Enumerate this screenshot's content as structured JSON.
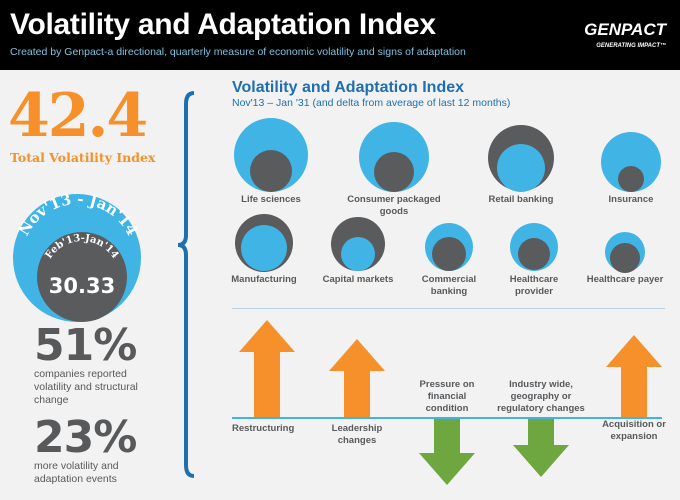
{
  "header": {
    "title": "Volatility and Adaptation Index",
    "subtitle": "Created by Genpact-a directional, quarterly measure of economic volatility and signs of adaptation",
    "logo": "GENPACT",
    "logo_tagline": "GENERATING IMPACT™"
  },
  "left": {
    "total_index": "42.4",
    "total_label": "Total Volatility Index",
    "outer_circle_period": "Nov'13 - Jan'14",
    "inner_circle_period": "Feb'13-Jan'14",
    "inner_circle_value": "30.33",
    "stat1": {
      "value": "51%",
      "text": "companies reported volatility and structural change"
    },
    "stat2": {
      "value": "23%",
      "text": "more volatility and adaptation events"
    }
  },
  "right": {
    "title": "Volatility and Adaptation Index",
    "subtitle": "Nov'13 – Jan '31 (and delta from average of last 12 months)",
    "industries": [
      {
        "label": "Life sciences",
        "front": "dark"
      },
      {
        "label": "Consumer packaged goods",
        "front": "dark"
      },
      {
        "label": "Retail banking",
        "front": "blue"
      },
      {
        "label": "Insurance",
        "front": "dark"
      },
      {
        "label": "Manufacturing",
        "front": "blue"
      },
      {
        "label": "Capital markets",
        "front": "blue"
      },
      {
        "label": "Commercial banking",
        "front": "dark"
      },
      {
        "label": "Healthcare provider",
        "front": "dark"
      },
      {
        "label": "Healthcare payer",
        "front": "dark"
      }
    ],
    "events": [
      {
        "label": "Restructuring",
        "direction": "up"
      },
      {
        "label": "Leadership changes",
        "direction": "up"
      },
      {
        "label": "Pressure on financial condition",
        "direction": "down"
      },
      {
        "label": "Industry wide, geography or regulatory changes",
        "direction": "down"
      },
      {
        "label": "Acquisition or expansion",
        "direction": "up"
      }
    ]
  },
  "colors": {
    "blue": "#40b4e5",
    "dark": "#5a5b5d",
    "orange": "#f5902a",
    "green": "#6ea63f",
    "brand_blue": "#1f6fae"
  }
}
